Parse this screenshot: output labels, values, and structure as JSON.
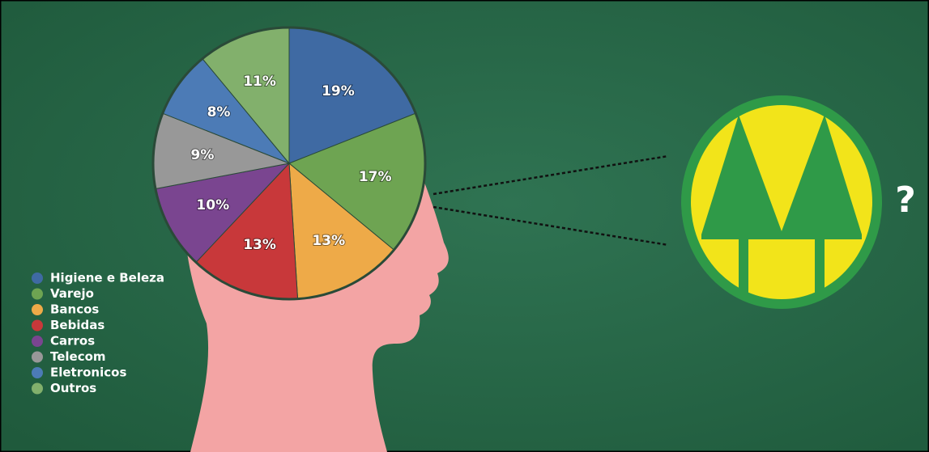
{
  "chart_data": {
    "type": "pie",
    "categories": [
      "Higiene e Beleza",
      "Varejo",
      "Bancos",
      "Bebidas",
      "Carros",
      "Telecom",
      "Eletronicos",
      "Outros"
    ],
    "values": [
      19,
      17,
      13,
      13,
      10,
      9,
      8,
      11
    ],
    "value_labels": [
      "19%",
      "17%",
      "13%",
      "13%",
      "10%",
      "9%",
      "8%",
      "11%"
    ],
    "colors": [
      "#3f6aa3",
      "#6ea452",
      "#eeaa48",
      "#c8383a",
      "#7a4590",
      "#989898",
      "#4c7bb6",
      "#82b06c"
    ],
    "annotation": "?"
  }
}
